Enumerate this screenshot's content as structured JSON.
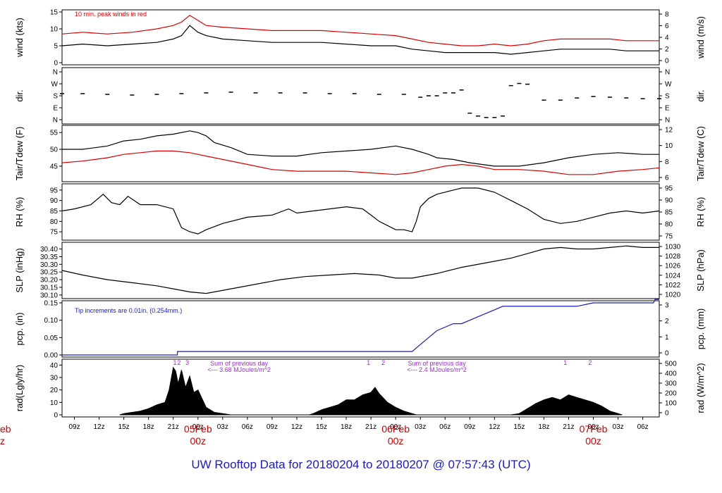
{
  "title": "UW Rooftop Data for 20180204  to  20180207 @ 07:57:43  (UTC)",
  "colors": {
    "red": "#dd0000",
    "blue": "#1a1acc",
    "purple": "#9b30d0",
    "black": "#000000"
  },
  "xaxis": {
    "hours_ticks": [
      "09z",
      "12z",
      "15z",
      "18z",
      "21z",
      "00z",
      "03z",
      "06z",
      "09z",
      "12z",
      "15z",
      "18z",
      "21z",
      "00z",
      "03z",
      "06z",
      "09z",
      "12z",
      "15z",
      "18z",
      "21z",
      "00z",
      "03z",
      "06z"
    ],
    "start_hour": 7.5,
    "end_hour": 80,
    "first_tick_hour": 9,
    "day_labels": [
      {
        "label": "05Feb",
        "sub": "00z",
        "hour": 24
      },
      {
        "label": "06Feb",
        "sub": "00z",
        "hour": 48
      },
      {
        "label": "07Feb",
        "sub": "00z",
        "hour": 72
      }
    ],
    "cut_label": {
      "label": "eb",
      "sub": "z"
    }
  },
  "chart_data": [
    {
      "type": "line",
      "panel": "wind",
      "ylabel_left": "wind (kts)",
      "ylabel_right": "wind (m/s)",
      "ylim": [
        0,
        15
      ],
      "yticks_left": [
        "0",
        "5",
        "10",
        "15"
      ],
      "yticks_right": [
        "0",
        "2",
        "4",
        "6",
        "8"
      ],
      "annotation": "10 min. peak winds in red",
      "series": [
        {
          "name": "wind",
          "color": "#000000",
          "x": [
            7.5,
            10,
            13,
            16,
            19,
            21,
            22,
            23,
            24,
            25,
            27,
            30,
            33,
            36,
            39,
            42,
            45,
            48,
            50,
            52,
            54,
            56,
            58,
            60,
            62,
            64,
            66,
            68,
            70,
            72,
            74,
            76,
            78,
            80
          ],
          "y": [
            5,
            5.5,
            5,
            5.5,
            6,
            7,
            8,
            11,
            9,
            8,
            7,
            6.5,
            6,
            6,
            6,
            5.5,
            5,
            5,
            4,
            3.5,
            3,
            3,
            3,
            3,
            2.5,
            3,
            3.5,
            4,
            4,
            4,
            4,
            3.5,
            3.5,
            3.5
          ]
        },
        {
          "name": "peak",
          "color": "#dd0000",
          "x": [
            7.5,
            10,
            13,
            16,
            19,
            21,
            22,
            23,
            24,
            25,
            27,
            30,
            33,
            36,
            39,
            42,
            45,
            48,
            50,
            52,
            54,
            56,
            58,
            60,
            62,
            64,
            66,
            68,
            70,
            72,
            74,
            76,
            78,
            80
          ],
          "y": [
            8.5,
            9,
            8.5,
            9,
            10,
            11,
            12,
            14,
            12.5,
            11,
            10.5,
            10,
            9.5,
            9.5,
            9.5,
            9,
            8.5,
            8,
            7,
            6,
            5.5,
            5,
            5,
            5.5,
            5,
            5.5,
            6.5,
            7,
            7,
            7,
            7,
            6.5,
            6.5,
            6.5
          ]
        }
      ]
    },
    {
      "type": "scatter",
      "panel": "dir",
      "ylabel_left": "dir.",
      "ylabel_right": "dir.",
      "yticks_left": [
        "N",
        "E",
        "S",
        "W",
        "N"
      ],
      "yticks_right": [
        "N",
        "E",
        "S",
        "W",
        "N"
      ],
      "ylim": [
        0,
        360
      ],
      "series": [
        {
          "name": "direction",
          "color": "#000000",
          "x": [
            7.5,
            10,
            13,
            16,
            19,
            22,
            25,
            28,
            31,
            34,
            37,
            40,
            43,
            46,
            49,
            51,
            52,
            53,
            54,
            55,
            56,
            57,
            58,
            59,
            60,
            61,
            62,
            63,
            64,
            66,
            68,
            70,
            72,
            74,
            76,
            78,
            80
          ],
          "y": [
            195,
            195,
            190,
            185,
            190,
            195,
            200,
            205,
            200,
            200,
            200,
            195,
            195,
            190,
            190,
            170,
            180,
            180,
            200,
            200,
            220,
            60,
            40,
            30,
            30,
            40,
            250,
            265,
            260,
            150,
            150,
            165,
            175,
            170,
            165,
            160,
            160
          ]
        }
      ]
    },
    {
      "type": "line",
      "panel": "temp",
      "ylabel_left": "Tair/Tdew (F)",
      "ylabel_right": "Tair/Tdew (C)",
      "ylim": [
        41,
        56.5
      ],
      "yticks_left": [
        "45",
        "50",
        "55"
      ],
      "yticks_right": [
        "6",
        "8",
        "10",
        "12"
      ],
      "series": [
        {
          "name": "Tair",
          "color": "#000000",
          "x": [
            7.5,
            10,
            13,
            15,
            17,
            19,
            21,
            23,
            24,
            25,
            26,
            28,
            30,
            33,
            36,
            39,
            42,
            45,
            48,
            50,
            52,
            53,
            55,
            57,
            60,
            63,
            66,
            69,
            72,
            75,
            78,
            80
          ],
          "y": [
            50,
            50,
            51,
            52.5,
            53,
            54,
            54.5,
            55.5,
            55,
            54,
            52,
            50.5,
            48.5,
            48,
            48,
            49,
            49.5,
            50,
            51,
            50,
            48.5,
            47.5,
            47,
            46,
            45,
            45,
            46,
            47.5,
            48.5,
            49,
            48.5,
            48.5
          ]
        },
        {
          "name": "Tdew",
          "color": "#dd0000",
          "x": [
            7.5,
            10,
            13,
            15,
            17,
            19,
            21,
            23,
            25,
            27,
            30,
            33,
            36,
            39,
            42,
            45,
            48,
            50,
            52,
            54,
            56,
            58,
            60,
            63,
            66,
            69,
            72,
            75,
            78,
            80
          ],
          "y": [
            46,
            46.5,
            47.5,
            48.5,
            49,
            49.5,
            49.5,
            49,
            48,
            47,
            45.5,
            44,
            43.5,
            43.5,
            43.5,
            43,
            42.5,
            43,
            44,
            45,
            45.5,
            45,
            44,
            44,
            43.5,
            42.5,
            42.5,
            43.5,
            44,
            44.5
          ]
        }
      ]
    },
    {
      "type": "line",
      "panel": "rh",
      "ylabel_left": "RH (%)",
      "ylabel_right": "RH (%)",
      "ylim": [
        72,
        97
      ],
      "yticks_left": [
        "75",
        "80",
        "85",
        "90",
        "95"
      ],
      "yticks_right": [
        "75",
        "80",
        "85",
        "90",
        "95"
      ],
      "series": [
        {
          "name": "RH",
          "color": "#000000",
          "x": [
            7.5,
            9,
            11,
            12.5,
            13.5,
            14.5,
            15.5,
            17,
            19,
            21,
            22,
            23,
            24,
            25,
            27,
            30,
            33,
            35,
            36,
            38,
            40,
            42,
            44,
            45,
            46,
            47,
            48,
            49,
            50,
            50.5,
            51,
            52,
            53,
            54,
            55,
            56,
            57,
            58,
            60,
            62,
            64,
            66,
            68,
            70,
            72,
            74,
            76,
            78,
            80
          ],
          "y": [
            85,
            86,
            88,
            93,
            89,
            88,
            92,
            88,
            88,
            86,
            77,
            75,
            74,
            76,
            79,
            82,
            83,
            86,
            84,
            85,
            86,
            87,
            86,
            83,
            80,
            78,
            76,
            76,
            75,
            80,
            87,
            91,
            93,
            94,
            95,
            96,
            96,
            96,
            94,
            90,
            86,
            81,
            79,
            80,
            82,
            84,
            85,
            84,
            85
          ]
        }
      ]
    },
    {
      "type": "line",
      "panel": "slp",
      "ylabel_left": "SLP (inHg)",
      "ylabel_right": "SLP (hPa)",
      "ylim": [
        30.09,
        30.43
      ],
      "yticks_left": [
        "30.10",
        "30.15",
        "30.20",
        "30.25",
        "30.30",
        "30.35",
        "30.40"
      ],
      "yticks_right": [
        "1020",
        "1022",
        "1024",
        "1026",
        "1028",
        "1030"
      ],
      "series": [
        {
          "name": "SLP",
          "color": "#000000",
          "x": [
            7.5,
            10,
            13,
            16,
            19,
            21,
            23,
            25,
            28,
            31,
            34,
            37,
            40,
            43,
            46,
            48,
            50,
            53,
            56,
            59,
            62,
            64,
            66,
            68,
            70,
            72,
            74,
            76,
            78,
            80
          ],
          "y": [
            30.26,
            30.23,
            30.2,
            30.18,
            30.16,
            30.14,
            30.12,
            30.11,
            30.14,
            30.17,
            30.2,
            30.22,
            30.23,
            30.24,
            30.23,
            30.21,
            30.21,
            30.24,
            30.28,
            30.31,
            30.34,
            30.37,
            30.4,
            30.41,
            30.4,
            30.4,
            30.41,
            30.42,
            30.41,
            30.41
          ]
        }
      ]
    },
    {
      "type": "line",
      "panel": "pcp",
      "ylabel_left": "pcp. (in)",
      "ylabel_right": "pcp. (mm)",
      "ylim": [
        0,
        0.15
      ],
      "yticks_left": [
        "0.00",
        "0.05",
        "0.10",
        "0.15"
      ],
      "yticks_right": [
        "0",
        "1",
        "2",
        "3"
      ],
      "annotation": "Tip increments are 0.01in. (0.254mm.)",
      "series": [
        {
          "name": "precip",
          "color": "#1a1acc",
          "x": [
            7.5,
            21.5,
            21.5,
            50,
            50.5,
            51,
            51.5,
            52,
            52.5,
            53,
            54,
            55,
            56,
            57,
            58,
            59,
            60,
            61,
            63,
            70,
            72,
            76,
            79.3,
            79.5,
            80
          ],
          "y": [
            0,
            0,
            0.01,
            0.01,
            0.02,
            0.03,
            0.04,
            0.05,
            0.06,
            0.07,
            0.08,
            0.09,
            0.09,
            0.1,
            0.11,
            0.12,
            0.13,
            0.14,
            0.14,
            0.14,
            0.15,
            0.15,
            0.15,
            0.16,
            0.16
          ]
        }
      ]
    },
    {
      "type": "area",
      "panel": "rad",
      "ylabel_left": "rad(Lgly/hr)",
      "ylabel_right": "rad (W/m^2)",
      "ylim": [
        0,
        43
      ],
      "yticks_left": [
        "0",
        "10",
        "20",
        "30",
        "40"
      ],
      "yticks_right": [
        "0",
        "100",
        "200",
        "300",
        "400",
        "500"
      ],
      "annotations": [
        {
          "text": "Sum of previous day",
          "hour": 29
        },
        {
          "text": "<--- 3.68 MJoules/m^2",
          "hour": 29
        },
        {
          "text": "Sum of previous day",
          "hour": 53
        },
        {
          "text": "<--- 2.4 MJoules/m^2",
          "hour": 53
        }
      ],
      "marks": [
        {
          "text": "1",
          "hour": 21.2
        },
        {
          "text": "2",
          "hour": 21.7
        },
        {
          "text": "3",
          "hour": 22.7
        },
        {
          "text": "1",
          "hour": 44.7
        },
        {
          "text": "2",
          "hour": 46.5
        },
        {
          "text": "1",
          "hour": 68.6
        },
        {
          "text": "2",
          "hour": 71.6
        }
      ],
      "series": [
        {
          "name": "radiation",
          "color": "#000000",
          "x": [
            14.5,
            15,
            17,
            18,
            19,
            20,
            20.5,
            21,
            21.3,
            21.6,
            22,
            22.5,
            23,
            23.5,
            24,
            25,
            26,
            27,
            28,
            37.5,
            38,
            39,
            40,
            41,
            42,
            43,
            44,
            45,
            45.5,
            46,
            47,
            48,
            49,
            50,
            50.5,
            62,
            63,
            64,
            65,
            66,
            67,
            68,
            69,
            70,
            71,
            72,
            73,
            74,
            75,
            75.5
          ],
          "y": [
            0,
            1,
            3,
            5,
            8,
            10,
            20,
            38,
            35,
            25,
            36,
            22,
            31,
            18,
            20,
            6,
            2,
            1,
            0,
            0,
            1,
            4,
            6,
            8,
            12,
            12,
            16,
            18,
            22,
            17,
            10,
            6,
            3,
            1,
            0,
            0,
            1,
            5,
            9,
            12,
            14,
            12,
            16,
            14,
            12,
            10,
            7,
            3,
            1,
            0
          ]
        }
      ]
    }
  ]
}
